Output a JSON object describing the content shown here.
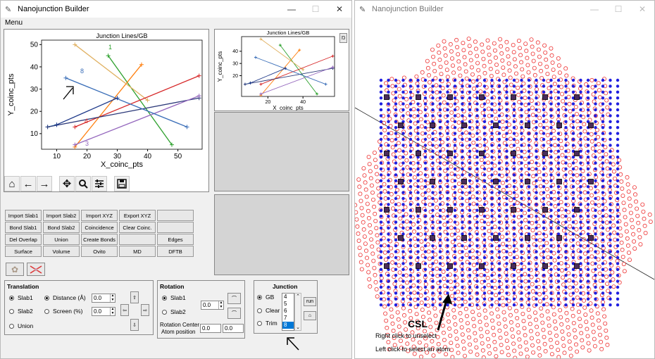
{
  "left_window": {
    "title": "Nanojunction Builder",
    "menu": "Menu",
    "main_plot": {
      "title": "Junction Lines/GB",
      "xlabel": "X_coinc_pts",
      "ylabel": "Y_coinc_pts",
      "xticks": [
        "10",
        "20",
        "30",
        "40",
        "50"
      ],
      "yticks": [
        "10",
        "20",
        "30",
        "40",
        "50"
      ],
      "point_labels": [
        "1",
        "8",
        "4",
        "3"
      ]
    },
    "mini_plot": {
      "title": "Junction Lines/GB",
      "xlabel": "X_coinc_pts",
      "ylabel": "Y_coinc_pts",
      "xticks": [
        "20",
        "40"
      ],
      "yticks": [
        "20",
        "30",
        "40"
      ],
      "button": "Ŋ"
    },
    "toolbar_icons": [
      "home-icon",
      "back-arrow-icon",
      "forward-arrow-icon",
      "pan-icon",
      "zoom-icon",
      "configure-icon",
      "save-icon"
    ],
    "buttons": [
      [
        "Import Slab1",
        "Import Slab2",
        "Import XYZ",
        "Export XYZ",
        "",
        ""
      ],
      [
        "Bond Slab1",
        "Bond Slab2",
        "Coincidence",
        "Clear Coinc.",
        "",
        ""
      ],
      [
        "Del Overlap",
        "Union",
        "Create Bonds",
        "",
        "Edges",
        ""
      ],
      [
        "Surface",
        "Volume",
        "Ovito",
        "MD",
        "DFTB",
        ""
      ]
    ],
    "translation": {
      "title": "Translation",
      "slab1": "Slab1",
      "slab2": "Slab2",
      "union": "Union",
      "distance": "Distance (Å)",
      "screen": "Screen (%)",
      "val1": "0.0",
      "val2": "0.0"
    },
    "rotation": {
      "title": "Rotation",
      "slab1": "Slab1",
      "slab2": "Slab2",
      "val": "0.0",
      "center_line1": "Rotation Center",
      "center_line2": "Atom position",
      "cx": "0.0",
      "cy": "0.0"
    },
    "junction": {
      "title": "Junction",
      "gb": "GB",
      "clear": "Clear",
      "trim": "Trim",
      "list": [
        "4",
        "5",
        "6",
        "7",
        "8"
      ],
      "selected": "8",
      "run": "run"
    }
  },
  "right_window": {
    "title": "Nanojunction Builder",
    "csl_label": "CSL",
    "hint1": "Right click to unselect",
    "hint2": "Left click to select an atom"
  },
  "chart_data": {
    "type": "line",
    "title": "Junction Lines/GB",
    "xlabel": "X_coinc_pts",
    "ylabel": "Y_coinc_pts",
    "xlim": [
      5,
      58
    ],
    "ylim": [
      3,
      52
    ],
    "series": [
      {
        "color": "#1f77b4",
        "points": [
          [
            7,
            13
          ],
          [
            10,
            14
          ]
        ]
      },
      {
        "color": "#2ca02c",
        "points": [
          [
            27,
            45
          ],
          [
            48,
            5
          ]
        ]
      },
      {
        "color": "#ff7f0e",
        "points": [
          [
            16,
            4
          ],
          [
            38,
            41
          ]
        ]
      },
      {
        "color": "#e0b060",
        "points": [
          [
            16,
            50
          ],
          [
            40,
            25
          ]
        ]
      },
      {
        "color": "#d62728",
        "points": [
          [
            16,
            13
          ],
          [
            57,
            36
          ]
        ]
      },
      {
        "color": "#2d3a7a",
        "points": [
          [
            7,
            13
          ],
          [
            57,
            26
          ]
        ]
      },
      {
        "color": "#9467bd",
        "points": [
          [
            16,
            5
          ],
          [
            57,
            27
          ]
        ]
      },
      {
        "color": "#3a6eb8",
        "points": [
          [
            13,
            35
          ],
          [
            53,
            13
          ]
        ]
      },
      {
        "color": "#1f3a8a",
        "points": [
          [
            10,
            14
          ],
          [
            30,
            26
          ]
        ]
      }
    ]
  }
}
